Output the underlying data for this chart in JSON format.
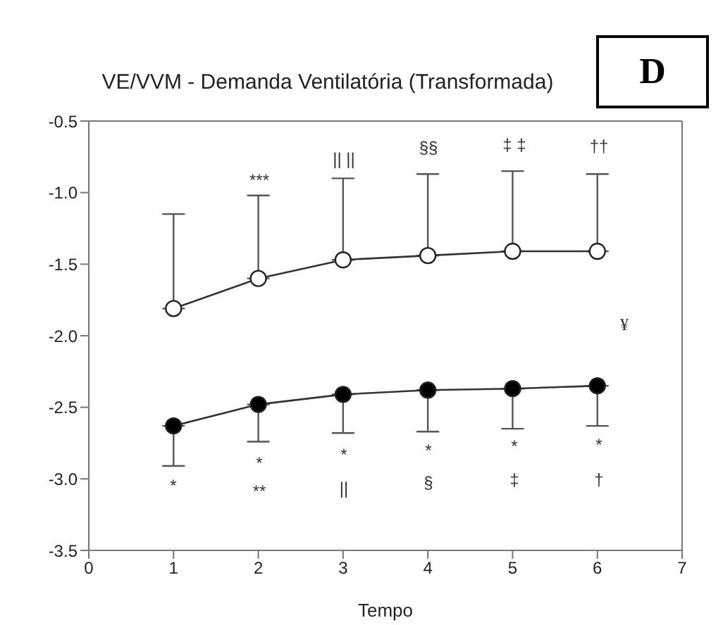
{
  "chart_data": {
    "type": "line",
    "title": "VE/VVM - Demanda Ventilatória (Transformada)",
    "xlabel": "Tempo",
    "x": [
      1,
      2,
      3,
      4,
      5,
      6
    ],
    "series": [
      {
        "color": "#ffffff",
        "values": [
          -1.81,
          -1.6,
          -1.47,
          -1.44,
          -1.41,
          -1.41
        ],
        "errors": [
          [
            -1.81,
            -1.15
          ],
          [
            -1.6,
            -1.02
          ],
          [
            -1.47,
            -0.9
          ],
          [
            -1.44,
            -0.87
          ],
          [
            -1.41,
            -0.85
          ],
          [
            -1.41,
            -0.87
          ]
        ]
      },
      {
        "color": "#000000",
        "values": [
          -2.63,
          -2.48,
          -2.41,
          -2.38,
          -2.37,
          -2.35
        ],
        "errors": [
          [
            -2.91,
            -2.63
          ],
          [
            -2.74,
            -2.48
          ],
          [
            -2.68,
            -2.41
          ],
          [
            -2.67,
            -2.38
          ],
          [
            -2.65,
            -2.37
          ],
          [
            -2.63,
            -2.35
          ]
        ]
      }
    ],
    "xlim": [
      0,
      7
    ],
    "xticks": [
      0,
      1,
      2,
      3,
      4,
      5,
      6,
      7
    ],
    "ylim": [
      -3.5,
      -0.5
    ],
    "yticks": [
      {
        "value": -3.5,
        "label": "-3.5"
      },
      {
        "value": -3,
        "label": "-3.0"
      },
      {
        "value": -2.5,
        "label": "-2.5"
      },
      {
        "value": -2,
        "label": "-2.0"
      },
      {
        "value": -1.5,
        "label": "-1.5"
      },
      {
        "value": -1,
        "label": "-1.0"
      },
      {
        "value": -0.5,
        "label": "-0.5"
      }
    ],
    "grid": false,
    "legend": false,
    "marker": "circle",
    "line_style": "solid",
    "annotations": [
      "D",
      "***",
      "|| ||",
      "§§",
      "‡ ‡",
      "††",
      "¥",
      "*",
      "*",
      "**",
      "*",
      "||",
      "*",
      "§",
      "*",
      "‡",
      "*",
      "†"
    ]
  }
}
